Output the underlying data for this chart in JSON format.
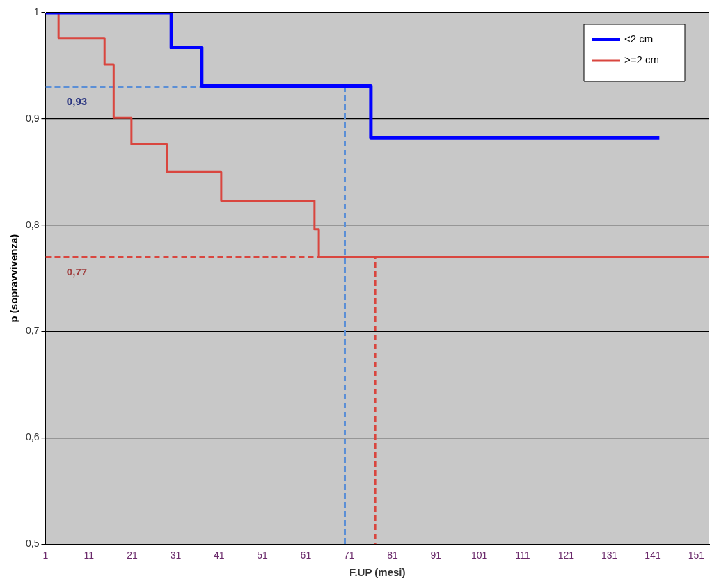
{
  "chart_data": {
    "type": "step",
    "xlabel": "F.UP (mesi)",
    "ylabel": "p (sopravvivenza)",
    "xlim": [
      1,
      154
    ],
    "xticks": [
      1,
      11,
      21,
      31,
      41,
      51,
      61,
      71,
      81,
      91,
      101,
      111,
      121,
      131,
      141,
      151
    ],
    "ylim": [
      0.5,
      1
    ],
    "yticks": [
      {
        "value": 0.5,
        "label": "0,5"
      },
      {
        "value": 0.6,
        "label": "0,6"
      },
      {
        "value": 0.7,
        "label": "0,7"
      },
      {
        "value": 0.8,
        "label": "0,8"
      },
      {
        "value": 0.9,
        "label": "0,9"
      },
      1
    ],
    "grid": "y",
    "legend": "top right",
    "marker": "none",
    "series": [
      {
        "name": "<2 cm",
        "color": "#0000ff",
        "x": [
          1,
          30,
          37,
          76,
          142.5
        ],
        "values": [
          1,
          0.967,
          0.931,
          0.882,
          0.882
        ]
      },
      {
        "name": ">=2 cm",
        "color": "#d9463f",
        "x": [
          1,
          4,
          14.6,
          16.7,
          20.8,
          29,
          41.5,
          63,
          64,
          154
        ],
        "values": [
          1,
          0.976,
          0.951,
          0.901,
          0.876,
          0.85,
          0.823,
          0.796,
          0.77,
          0.77
        ]
      },
      {
        "type": "line",
        "line_style": "dashed",
        "color": "#5b8fd6",
        "x": [
          1,
          70,
          70
        ],
        "values": [
          0.93,
          0.93,
          0.5
        ]
      },
      {
        "type": "line",
        "line_style": "dashed",
        "color": "#d9463f",
        "x": [
          1,
          77,
          77
        ],
        "values": [
          0.77,
          0.77,
          0.5
        ]
      }
    ],
    "annotations": [
      "0,93",
      "0,77"
    ]
  }
}
